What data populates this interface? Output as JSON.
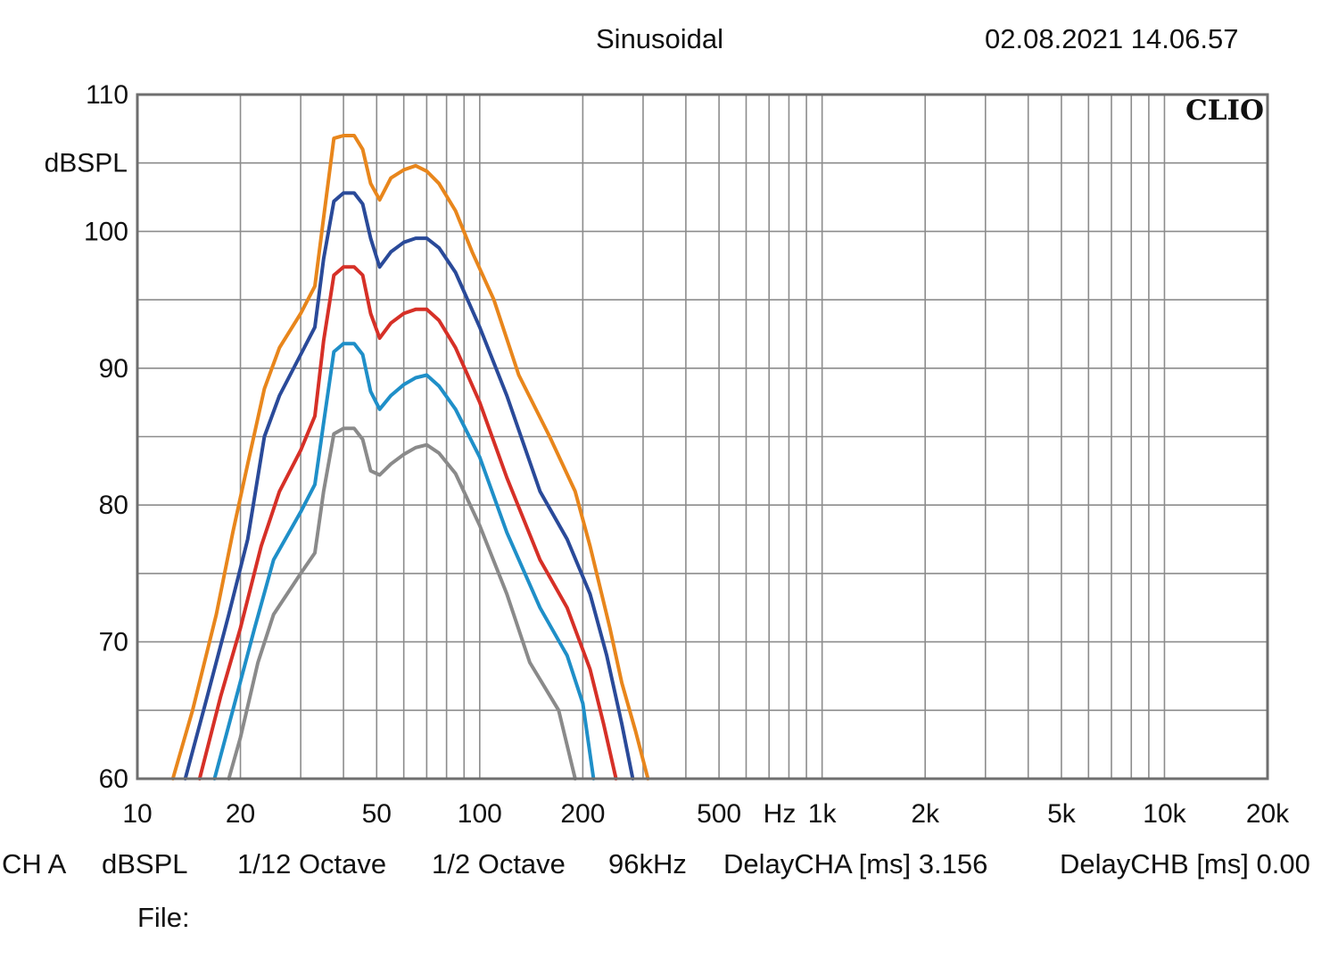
{
  "header": {
    "title": "Sinusoidal",
    "timestamp": "02.08.2021 14.06.57"
  },
  "brand": "CLIO",
  "footer": {
    "channel": "CH A",
    "unit": "dBSPL",
    "smoothing": "1/12 Octave",
    "resolution": "1/2 Octave",
    "sample_rate": "96kHz",
    "delay_a": "DelayCHA [ms] 3.156",
    "delay_b": "DelayCHB [ms] 0.00",
    "file_label": "File:"
  },
  "chart_data": {
    "type": "line",
    "title": "Sinusoidal",
    "xlabel": "Hz",
    "ylabel": "dBSPL",
    "x_scale": "log",
    "xlim": [
      10,
      20000
    ],
    "ylim": [
      60,
      110
    ],
    "grid": true,
    "x_ticks": [
      {
        "value": 10,
        "label": "10"
      },
      {
        "value": 20,
        "label": "20"
      },
      {
        "value": 50,
        "label": "50"
      },
      {
        "value": 100,
        "label": "100"
      },
      {
        "value": 200,
        "label": "200"
      },
      {
        "value": 500,
        "label": "500"
      },
      {
        "value": 1000,
        "label": "1k"
      },
      {
        "value": 2000,
        "label": "2k"
      },
      {
        "value": 5000,
        "label": "5k"
      },
      {
        "value": 10000,
        "label": "10k"
      },
      {
        "value": 20000,
        "label": "20k"
      }
    ],
    "y_ticks": [
      {
        "value": 110,
        "label": "110"
      },
      {
        "value": 100,
        "label": "100"
      },
      {
        "value": 90,
        "label": "90"
      },
      {
        "value": 80,
        "label": "80"
      },
      {
        "value": 70,
        "label": "70"
      },
      {
        "value": 60,
        "label": "60"
      }
    ],
    "series": [
      {
        "color": "#e8861c",
        "points": [
          [
            12.7,
            60
          ],
          [
            14.5,
            65
          ],
          [
            17,
            72
          ],
          [
            19,
            78
          ],
          [
            21,
            83
          ],
          [
            23.5,
            88.5
          ],
          [
            26,
            91.5
          ],
          [
            30,
            94
          ],
          [
            33,
            96
          ],
          [
            35,
            101
          ],
          [
            37.5,
            106.8
          ],
          [
            40,
            107
          ],
          [
            43,
            107
          ],
          [
            45.5,
            106
          ],
          [
            48,
            103.5
          ],
          [
            51,
            102.3
          ],
          [
            55,
            103.9
          ],
          [
            60,
            104.5
          ],
          [
            65,
            104.8
          ],
          [
            70,
            104.4
          ],
          [
            76,
            103.5
          ],
          [
            85,
            101.5
          ],
          [
            95,
            98.5
          ],
          [
            110,
            95
          ],
          [
            130,
            89.5
          ],
          [
            160,
            85
          ],
          [
            190,
            81
          ],
          [
            210,
            77
          ],
          [
            240,
            71
          ],
          [
            260,
            67
          ],
          [
            285,
            63.5
          ],
          [
            310,
            60
          ]
        ]
      },
      {
        "color": "#2a4a99",
        "points": [
          [
            13.8,
            60
          ],
          [
            16,
            66
          ],
          [
            18.5,
            72
          ],
          [
            21,
            77.5
          ],
          [
            23.5,
            85
          ],
          [
            26,
            88
          ],
          [
            30,
            91
          ],
          [
            33,
            93
          ],
          [
            35,
            98
          ],
          [
            37.5,
            102.2
          ],
          [
            40,
            102.8
          ],
          [
            43,
            102.8
          ],
          [
            45.5,
            102
          ],
          [
            48,
            99.5
          ],
          [
            51,
            97.4
          ],
          [
            55,
            98.5
          ],
          [
            60,
            99.2
          ],
          [
            65,
            99.5
          ],
          [
            70,
            99.5
          ],
          [
            76,
            98.8
          ],
          [
            85,
            97
          ],
          [
            100,
            93
          ],
          [
            120,
            88
          ],
          [
            150,
            81
          ],
          [
            180,
            77.5
          ],
          [
            210,
            73.5
          ],
          [
            235,
            69
          ],
          [
            260,
            64
          ],
          [
            280,
            60
          ]
        ]
      },
      {
        "color": "#d63027",
        "points": [
          [
            15.2,
            60
          ],
          [
            17.5,
            66
          ],
          [
            20,
            71
          ],
          [
            23,
            77
          ],
          [
            26,
            81
          ],
          [
            30,
            84
          ],
          [
            33,
            86.5
          ],
          [
            35,
            92
          ],
          [
            37.5,
            96.8
          ],
          [
            40,
            97.4
          ],
          [
            43,
            97.4
          ],
          [
            45.5,
            96.8
          ],
          [
            48,
            94
          ],
          [
            51,
            92.2
          ],
          [
            55,
            93.3
          ],
          [
            60,
            94
          ],
          [
            65,
            94.3
          ],
          [
            70,
            94.3
          ],
          [
            76,
            93.5
          ],
          [
            85,
            91.5
          ],
          [
            100,
            87.5
          ],
          [
            120,
            82
          ],
          [
            150,
            76
          ],
          [
            180,
            72.5
          ],
          [
            210,
            68
          ],
          [
            230,
            64
          ],
          [
            250,
            60
          ]
        ]
      },
      {
        "color": "#1f8fc8",
        "points": [
          [
            16.8,
            60
          ],
          [
            19,
            65
          ],
          [
            22,
            71
          ],
          [
            25,
            76
          ],
          [
            30,
            79.5
          ],
          [
            33,
            81.5
          ],
          [
            35,
            86
          ],
          [
            37.5,
            91.2
          ],
          [
            40,
            91.8
          ],
          [
            43,
            91.8
          ],
          [
            45.5,
            91
          ],
          [
            48,
            88.3
          ],
          [
            51,
            87
          ],
          [
            55,
            88
          ],
          [
            60,
            88.8
          ],
          [
            65,
            89.3
          ],
          [
            70,
            89.5
          ],
          [
            76,
            88.7
          ],
          [
            85,
            87
          ],
          [
            100,
            83.5
          ],
          [
            120,
            78
          ],
          [
            150,
            72.5
          ],
          [
            180,
            69
          ],
          [
            200,
            65.5
          ],
          [
            215,
            60
          ]
        ]
      },
      {
        "color": "#8a8a8a",
        "points": [
          [
            18.5,
            60
          ],
          [
            20,
            63
          ],
          [
            22.5,
            68.5
          ],
          [
            25,
            72
          ],
          [
            30,
            75
          ],
          [
            33,
            76.5
          ],
          [
            35,
            81
          ],
          [
            37.5,
            85.2
          ],
          [
            40,
            85.6
          ],
          [
            43,
            85.6
          ],
          [
            45.5,
            84.8
          ],
          [
            48,
            82.5
          ],
          [
            51,
            82.2
          ],
          [
            55,
            83
          ],
          [
            60,
            83.7
          ],
          [
            65,
            84.2
          ],
          [
            70,
            84.4
          ],
          [
            76,
            83.8
          ],
          [
            85,
            82.3
          ],
          [
            100,
            78.5
          ],
          [
            120,
            73.5
          ],
          [
            140,
            68.5
          ],
          [
            170,
            65
          ],
          [
            190,
            60
          ]
        ]
      }
    ]
  }
}
